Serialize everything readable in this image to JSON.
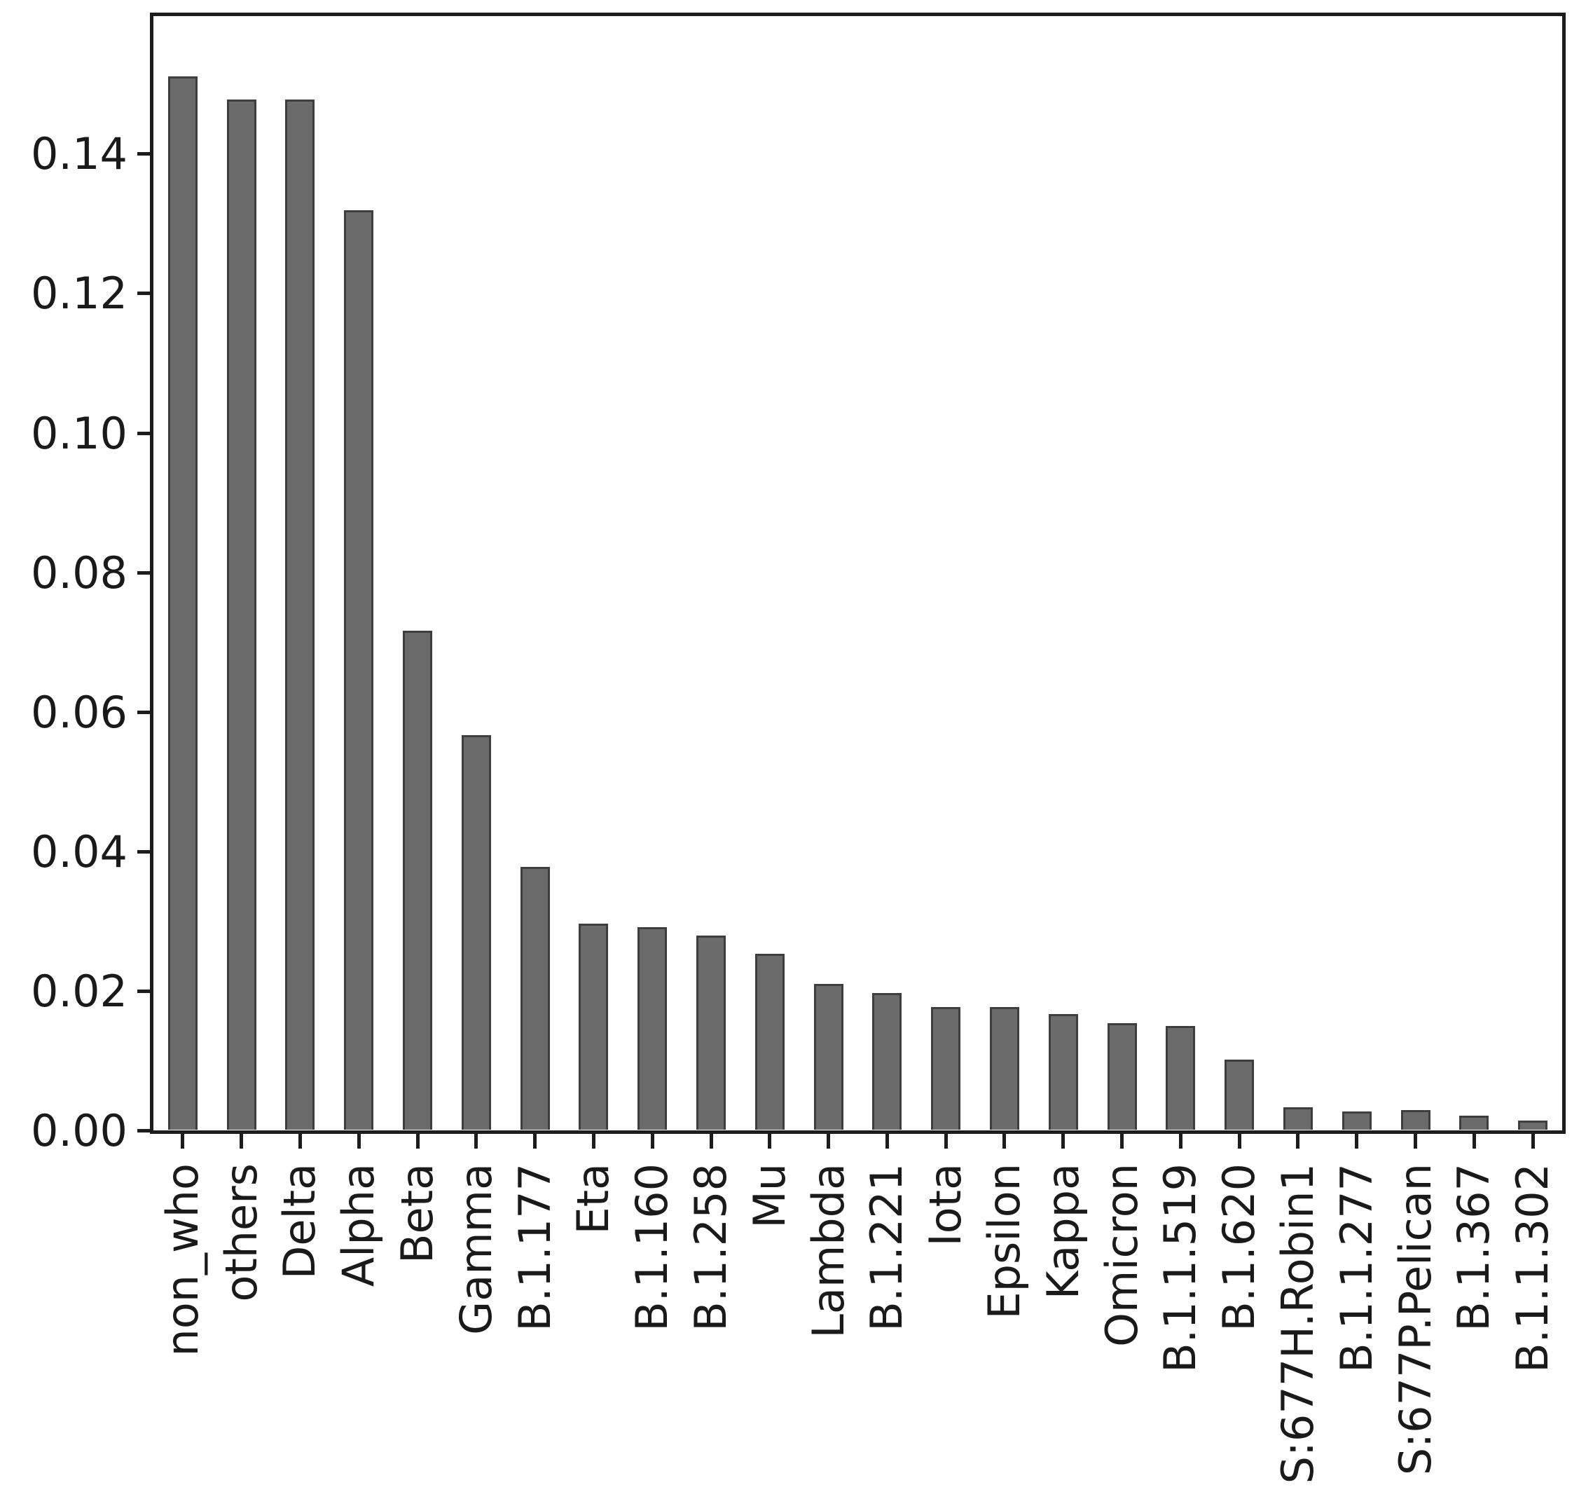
{
  "figure": {
    "background": "#ffffff",
    "bar_fill_color": "#6b6b6b",
    "bar_edge_color": "#3e3e3e",
    "axis_color": "#1c1c1c",
    "text_color": "#1a1a1a"
  },
  "chart_data": {
    "type": "bar",
    "title": "",
    "xlabel": "",
    "ylabel": "",
    "legend": null,
    "grid": false,
    "ylim": [
      0,
      0.16
    ],
    "ytick_labels": [
      "0.00",
      "0.02",
      "0.04",
      "0.06",
      "0.08",
      "0.10",
      "0.12",
      "0.14"
    ],
    "ytick_values": [
      0.0,
      0.02,
      0.04,
      0.06,
      0.08,
      0.1,
      0.12,
      0.14
    ],
    "x_label_rotation_deg": 90,
    "categories": [
      "non_who",
      "others",
      "Delta",
      "Alpha",
      "Beta",
      "Gamma",
      "B.1.177",
      "Eta",
      "B.1.160",
      "B.1.258",
      "Mu",
      "Lambda",
      "B.1.221",
      "Iota",
      "Epsilon",
      "Kappa",
      "Omicron",
      "B.1.1.519",
      "B.1.620",
      "S:677H.Robin1",
      "B.1.1.277",
      "S:677P.Pelican",
      "B.1.367",
      "B.1.1.302"
    ],
    "values": [
      0.151,
      0.1477,
      0.1477,
      0.1318,
      0.0715,
      0.0566,
      0.0377,
      0.0295,
      0.029,
      0.0278,
      0.0252,
      0.0209,
      0.0196,
      0.0176,
      0.0176,
      0.0166,
      0.0153,
      0.0149,
      0.01,
      0.0032,
      0.0026,
      0.0028,
      0.002,
      0.0013
    ]
  }
}
